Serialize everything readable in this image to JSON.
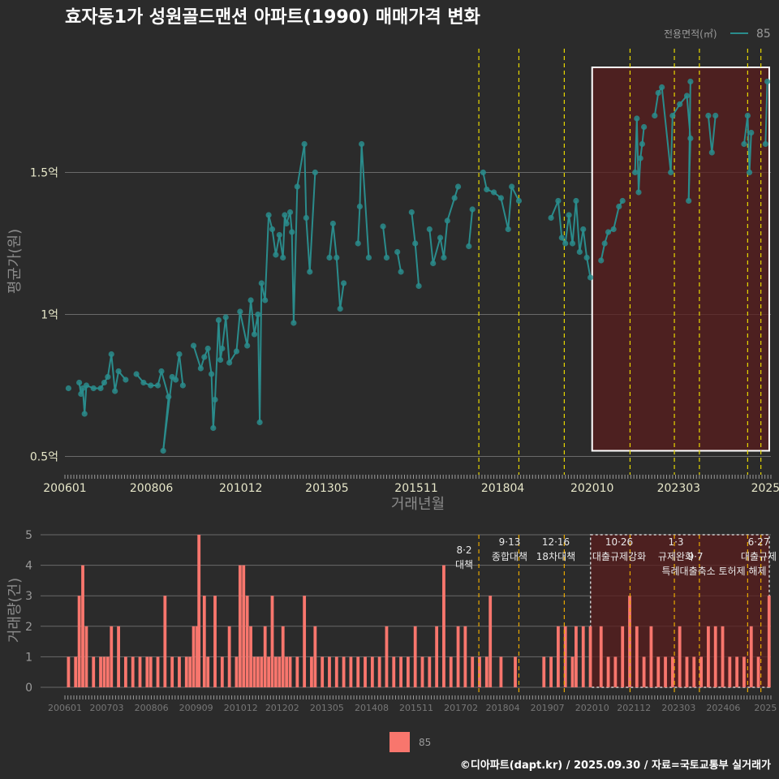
{
  "title": "효자동1가 성원골드맨션 아파트(1990) 매매가격 변화",
  "source": "©디아파트(dapt.kr) / 2025.09.30 / 자료=국토교통부 실거래가",
  "colors": {
    "background": "#2b2b2b",
    "price_line": "#2a8c8c",
    "bar": "#f8766d",
    "highlight": "#5a1e1e",
    "policy_line_top": "#e8d800",
    "policy_line_bottom": "#e8a800"
  },
  "chart_data": [
    {
      "type": "line",
      "name": "price",
      "title": "효자동1가 성원골드맨션 아파트(1990) 매매가격 변화",
      "xlabel": "거래년월",
      "ylabel": "평균가(원)",
      "ylim": [
        0.45,
        1.95
      ],
      "xlim": [
        2006.0,
        2025.75
      ],
      "x_ticks": [
        "200601",
        "200806",
        "201012",
        "201305",
        "201511",
        "201804",
        "202010",
        "202303",
        "2025"
      ],
      "x_tick_values": [
        2006.0,
        2008.42,
        2010.92,
        2013.33,
        2015.83,
        2018.25,
        2020.75,
        2023.17,
        2025.6
      ],
      "y_ticks": [
        "0.5억",
        "1억",
        "1.5억"
      ],
      "y_tick_values": [
        0.5,
        1.0,
        1.5
      ],
      "legend_title": "전용면적(㎡)",
      "series": [
        {
          "name": "85",
          "points": [
            [
              2006.1,
              0.74
            ],
            [
              2006.4,
              0.76
            ],
            [
              2006.45,
              0.72
            ],
            [
              2006.5,
              0.74
            ],
            [
              2006.55,
              0.65
            ],
            [
              2006.6,
              0.75
            ],
            [
              2006.8,
              0.74
            ],
            [
              2007.0,
              0.74
            ],
            [
              2007.1,
              0.76
            ],
            [
              2007.2,
              0.78
            ],
            [
              2007.3,
              0.86
            ],
            [
              2007.4,
              0.73
            ],
            [
              2007.5,
              0.8
            ],
            [
              2007.7,
              0.77
            ],
            [
              2008.0,
              0.79
            ],
            [
              2008.2,
              0.76
            ],
            [
              2008.4,
              0.75
            ],
            [
              2008.6,
              0.75
            ],
            [
              2008.7,
              0.8
            ],
            [
              2008.9,
              0.71
            ],
            [
              2008.75,
              0.52
            ],
            [
              2009.0,
              0.78
            ],
            [
              2009.1,
              0.77
            ],
            [
              2009.2,
              0.86
            ],
            [
              2009.3,
              0.75
            ],
            [
              2009.6,
              0.89
            ],
            [
              2009.8,
              0.81
            ],
            [
              2009.9,
              0.85
            ],
            [
              2010.0,
              0.88
            ],
            [
              2010.1,
              0.79
            ],
            [
              2010.15,
              0.6
            ],
            [
              2010.2,
              0.7
            ],
            [
              2010.3,
              0.98
            ],
            [
              2010.35,
              0.84
            ],
            [
              2010.4,
              0.88
            ],
            [
              2010.5,
              0.99
            ],
            [
              2010.6,
              0.83
            ],
            [
              2010.8,
              0.87
            ],
            [
              2010.9,
              1.01
            ],
            [
              2011.1,
              0.89
            ],
            [
              2011.2,
              1.05
            ],
            [
              2011.3,
              0.93
            ],
            [
              2011.4,
              1.0
            ],
            [
              2011.45,
              0.62
            ],
            [
              2011.5,
              1.11
            ],
            [
              2011.6,
              1.05
            ],
            [
              2011.7,
              1.35
            ],
            [
              2011.8,
              1.3
            ],
            [
              2011.9,
              1.21
            ],
            [
              2012.0,
              1.28
            ],
            [
              2012.1,
              1.2
            ],
            [
              2012.15,
              1.35
            ],
            [
              2012.2,
              1.32
            ],
            [
              2012.3,
              1.36
            ],
            [
              2012.35,
              1.29
            ],
            [
              2012.4,
              0.97
            ],
            [
              2012.5,
              1.45
            ],
            [
              2012.7,
              1.6
            ],
            [
              2012.75,
              1.34
            ],
            [
              2012.85,
              1.15
            ],
            [
              2013.0,
              1.5
            ],
            [
              2013.4,
              1.2
            ],
            [
              2013.5,
              1.32
            ],
            [
              2013.6,
              1.2
            ],
            [
              2013.7,
              1.02
            ],
            [
              2013.8,
              1.11
            ],
            [
              2014.2,
              1.25
            ],
            [
              2014.25,
              1.38
            ],
            [
              2014.3,
              1.6
            ],
            [
              2014.5,
              1.2
            ],
            [
              2014.9,
              1.31
            ],
            [
              2015.0,
              1.2
            ],
            [
              2015.3,
              1.22
            ],
            [
              2015.4,
              1.15
            ],
            [
              2015.7,
              1.36
            ],
            [
              2015.8,
              1.25
            ],
            [
              2015.9,
              1.1
            ],
            [
              2016.2,
              1.3
            ],
            [
              2016.3,
              1.18
            ],
            [
              2016.5,
              1.27
            ],
            [
              2016.6,
              1.2
            ],
            [
              2016.7,
              1.33
            ],
            [
              2016.9,
              1.41
            ],
            [
              2017.0,
              1.45
            ],
            [
              2017.3,
              1.24
            ],
            [
              2017.4,
              1.37
            ],
            [
              2017.7,
              1.5
            ],
            [
              2017.8,
              1.44
            ],
            [
              2018.0,
              1.43
            ],
            [
              2018.2,
              1.41
            ],
            [
              2018.4,
              1.3
            ],
            [
              2018.5,
              1.45
            ],
            [
              2018.7,
              1.4
            ],
            [
              2019.6,
              1.34
            ],
            [
              2019.8,
              1.4
            ],
            [
              2019.9,
              1.27
            ],
            [
              2020.0,
              1.25
            ],
            [
              2020.1,
              1.35
            ],
            [
              2020.2,
              1.25
            ],
            [
              2020.3,
              1.4
            ],
            [
              2020.4,
              1.22
            ],
            [
              2020.5,
              1.3
            ],
            [
              2020.6,
              1.2
            ],
            [
              2020.7,
              1.13
            ],
            [
              2021.0,
              1.19
            ],
            [
              2021.1,
              1.25
            ],
            [
              2021.2,
              1.29
            ],
            [
              2021.35,
              1.3
            ],
            [
              2021.5,
              1.38
            ],
            [
              2021.6,
              1.4
            ],
            [
              2021.95,
              1.5
            ],
            [
              2022.0,
              1.69
            ],
            [
              2022.05,
              1.43
            ],
            [
              2022.1,
              1.55
            ],
            [
              2022.15,
              1.6
            ],
            [
              2022.2,
              1.66
            ],
            [
              2022.5,
              1.7
            ],
            [
              2022.6,
              1.78
            ],
            [
              2022.7,
              1.8
            ],
            [
              2022.95,
              1.5
            ],
            [
              2023.0,
              1.7
            ],
            [
              2023.2,
              1.74
            ],
            [
              2023.4,
              1.77
            ],
            [
              2023.5,
              1.62
            ],
            [
              2023.45,
              1.4
            ],
            [
              2023.5,
              1.82
            ],
            [
              2024.0,
              1.7
            ],
            [
              2024.1,
              1.57
            ],
            [
              2024.2,
              1.7
            ],
            [
              2025.0,
              1.6
            ],
            [
              2025.1,
              1.7
            ],
            [
              2025.15,
              1.5
            ],
            [
              2025.2,
              1.64
            ],
            [
              2025.6,
              1.6
            ],
            [
              2025.65,
              1.82
            ]
          ]
        }
      ],
      "policy_lines_x": [
        2017.58,
        2018.7,
        2019.97,
        2021.81,
        2023.05,
        2023.75,
        2025.1,
        2025.47
      ],
      "highlight_x": [
        2020.75,
        2025.75
      ],
      "highlight_y": [
        0.52,
        1.87
      ]
    },
    {
      "type": "bar",
      "name": "volume",
      "ylabel": "거래량(건)",
      "ylim": [
        0,
        5
      ],
      "xlim": [
        2006.0,
        2025.75
      ],
      "y_ticks": [
        "0",
        "1",
        "2",
        "3",
        "4",
        "5"
      ],
      "x_ticks": [
        "200601",
        "200703",
        "200806",
        "200909",
        "201012",
        "201202",
        "201305",
        "201408",
        "201511",
        "201702",
        "201804",
        "201907",
        "202010",
        "202112",
        "202303",
        "202406",
        "2025"
      ],
      "x_tick_values": [
        2006.0,
        2007.17,
        2008.42,
        2009.67,
        2010.92,
        2012.08,
        2013.33,
        2014.58,
        2015.83,
        2017.08,
        2018.25,
        2019.5,
        2020.75,
        2021.92,
        2023.17,
        2024.42,
        2025.6
      ],
      "legend": "85",
      "x": [
        2006.1,
        2006.3,
        2006.4,
        2006.5,
        2006.6,
        2006.8,
        2007.0,
        2007.1,
        2007.2,
        2007.3,
        2007.5,
        2007.7,
        2007.9,
        2008.1,
        2008.3,
        2008.4,
        2008.6,
        2008.8,
        2009.0,
        2009.2,
        2009.4,
        2009.5,
        2009.6,
        2009.7,
        2009.75,
        2009.9,
        2010.0,
        2010.2,
        2010.4,
        2010.6,
        2010.8,
        2010.9,
        2011.0,
        2011.1,
        2011.2,
        2011.3,
        2011.4,
        2011.5,
        2011.6,
        2011.7,
        2011.8,
        2011.9,
        2012.0,
        2012.1,
        2012.2,
        2012.3,
        2012.5,
        2012.7,
        2012.9,
        2013.0,
        2013.2,
        2013.4,
        2013.6,
        2013.8,
        2014.0,
        2014.2,
        2014.4,
        2014.6,
        2014.8,
        2015.0,
        2015.2,
        2015.4,
        2015.6,
        2015.8,
        2016.0,
        2016.2,
        2016.4,
        2016.6,
        2016.8,
        2017.0,
        2017.2,
        2017.4,
        2017.6,
        2017.8,
        2017.9,
        2018.2,
        2018.6,
        2019.4,
        2019.6,
        2019.8,
        2020.0,
        2020.2,
        2020.3,
        2020.5,
        2020.7,
        2021.0,
        2021.2,
        2021.4,
        2021.6,
        2021.8,
        2022.0,
        2022.2,
        2022.4,
        2022.6,
        2022.8,
        2023.0,
        2023.2,
        2023.4,
        2023.6,
        2023.8,
        2024.0,
        2024.2,
        2024.4,
        2024.6,
        2024.8,
        2025.0,
        2025.2,
        2025.4,
        2025.7
      ],
      "values": [
        1,
        1,
        3,
        4,
        2,
        1,
        1,
        1,
        1,
        2,
        2,
        1,
        1,
        1,
        1,
        1,
        1,
        3,
        1,
        1,
        1,
        1,
        2,
        2,
        5,
        3,
        1,
        3,
        1,
        2,
        1,
        4,
        4,
        3,
        2,
        1,
        1,
        1,
        2,
        1,
        3,
        1,
        1,
        2,
        1,
        1,
        1,
        3,
        1,
        2,
        1,
        1,
        1,
        1,
        1,
        1,
        1,
        1,
        1,
        2,
        1,
        1,
        1,
        2,
        1,
        1,
        2,
        4,
        1,
        2,
        2,
        1,
        1,
        1,
        3,
        1,
        1,
        1,
        1,
        2,
        2,
        1,
        2,
        2,
        2,
        2,
        1,
        1,
        2,
        3,
        2,
        1,
        2,
        1,
        1,
        1,
        2,
        1,
        1,
        1,
        2,
        2,
        2,
        1,
        1,
        1,
        2,
        1,
        3
      ]
    }
  ],
  "policy_annotations": [
    {
      "date": "8·2",
      "label": "대책"
    },
    {
      "date": "9·13",
      "label": "종합대책"
    },
    {
      "date": "12·16",
      "label": "18차대책"
    },
    {
      "date": "10·26",
      "label": "대출규제강화"
    },
    {
      "date": "1·3",
      "label": "규제완화"
    },
    {
      "date": "",
      "label": "9·7"
    },
    {
      "date": "",
      "label": "특례대출축소 토허제 해제"
    },
    {
      "date": "6·27",
      "label": "대출규제"
    }
  ]
}
